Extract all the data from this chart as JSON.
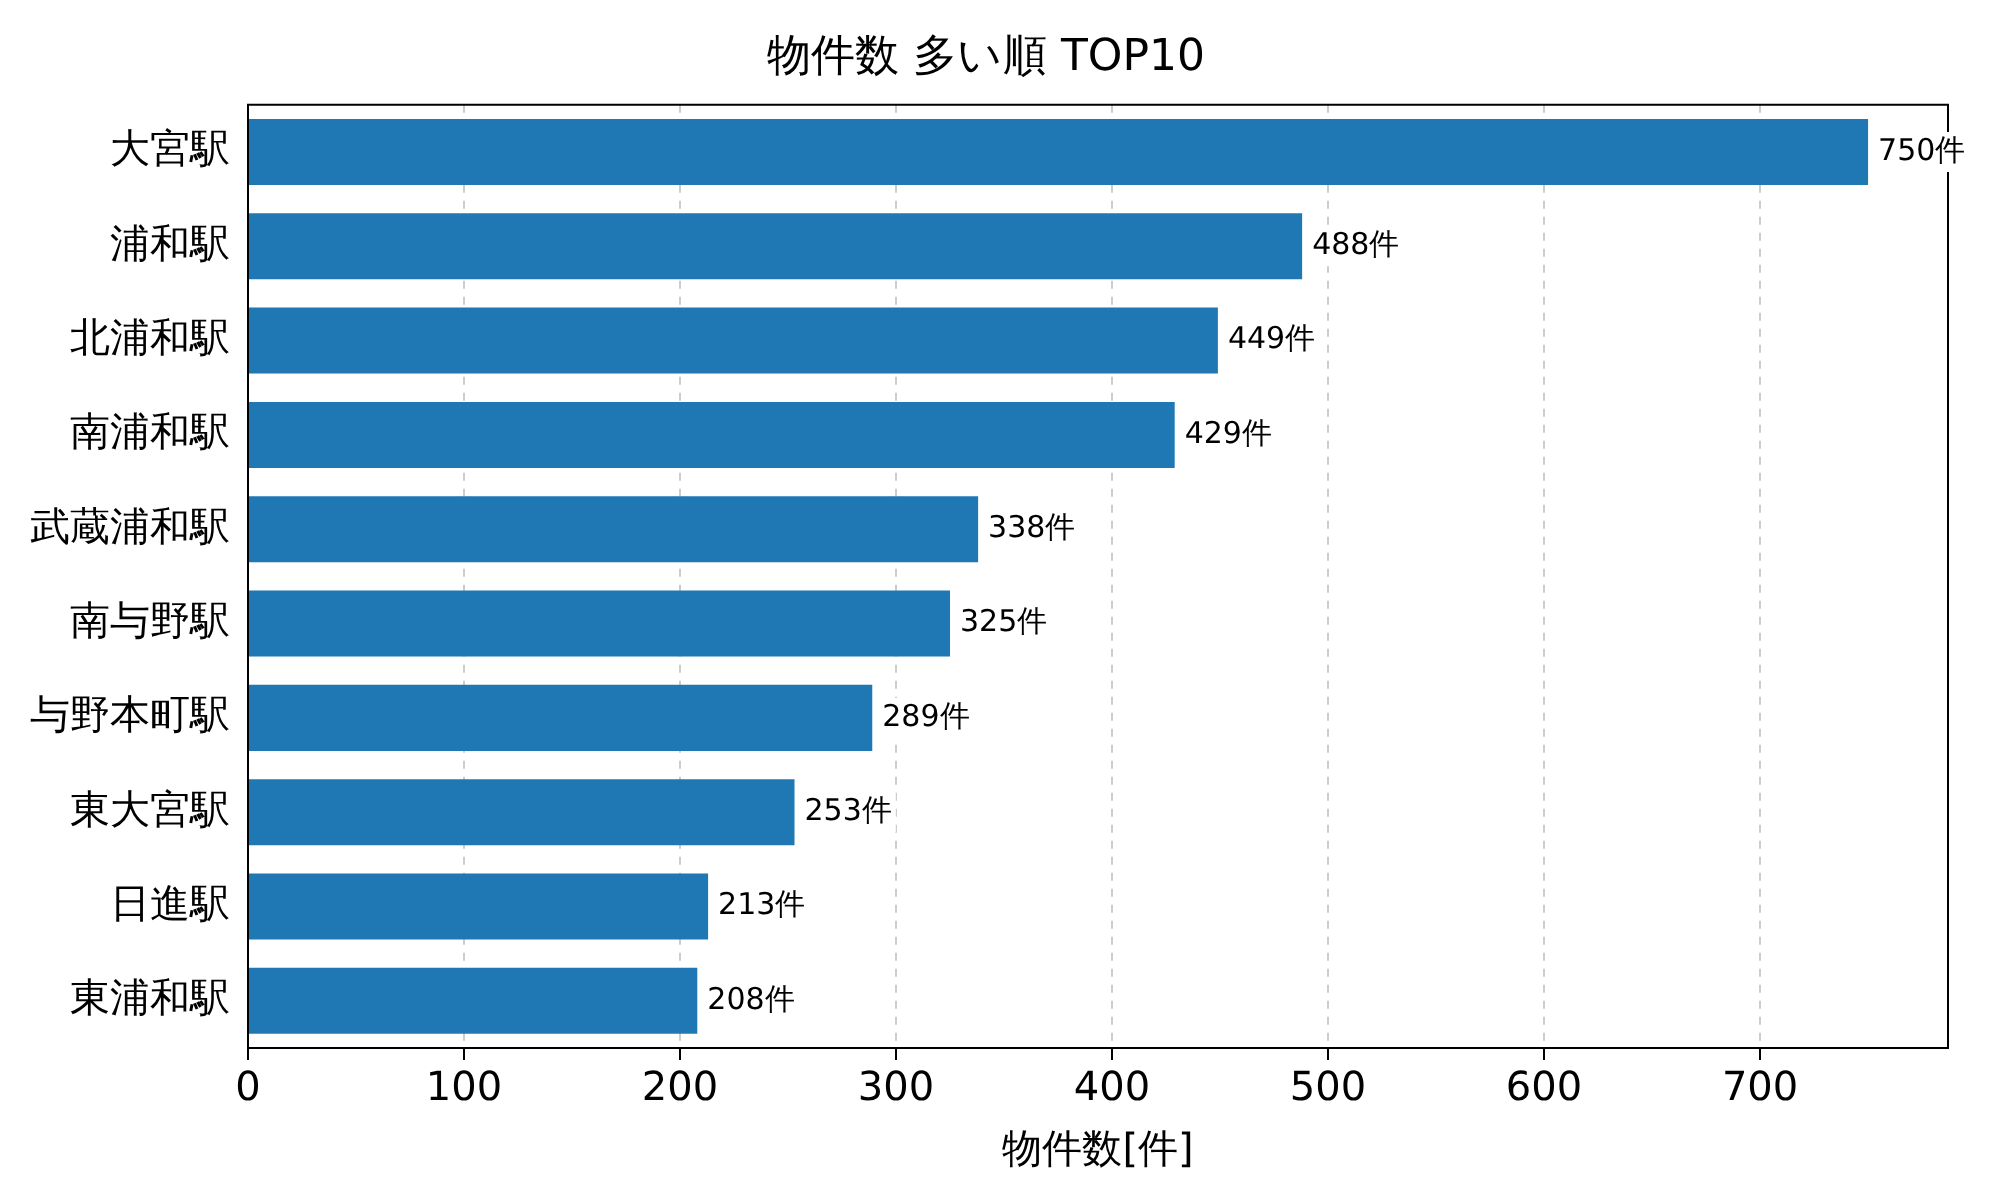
{
  "chart_data": {
    "type": "bar",
    "orientation": "horizontal",
    "title": "物件数 多い順 TOP10",
    "xlabel": "物件数[件]",
    "categories": [
      "大宮駅",
      "浦和駅",
      "北浦和駅",
      "南浦和駅",
      "武蔵浦和駅",
      "南与野駅",
      "与野本町駅",
      "東大宮駅",
      "日進駅",
      "東浦和駅"
    ],
    "values": [
      750,
      488,
      449,
      429,
      338,
      325,
      289,
      253,
      213,
      208
    ],
    "value_labels": [
      "750件",
      "488件",
      "449件",
      "429件",
      "338件",
      "325件",
      "289件",
      "253件",
      "213件",
      "208件"
    ],
    "color": "#1f77b4",
    "xlim": [
      0,
      787
    ],
    "xticks": [
      0,
      100,
      200,
      300,
      400,
      500,
      600,
      700
    ],
    "grid": "x",
    "legend": false
  }
}
